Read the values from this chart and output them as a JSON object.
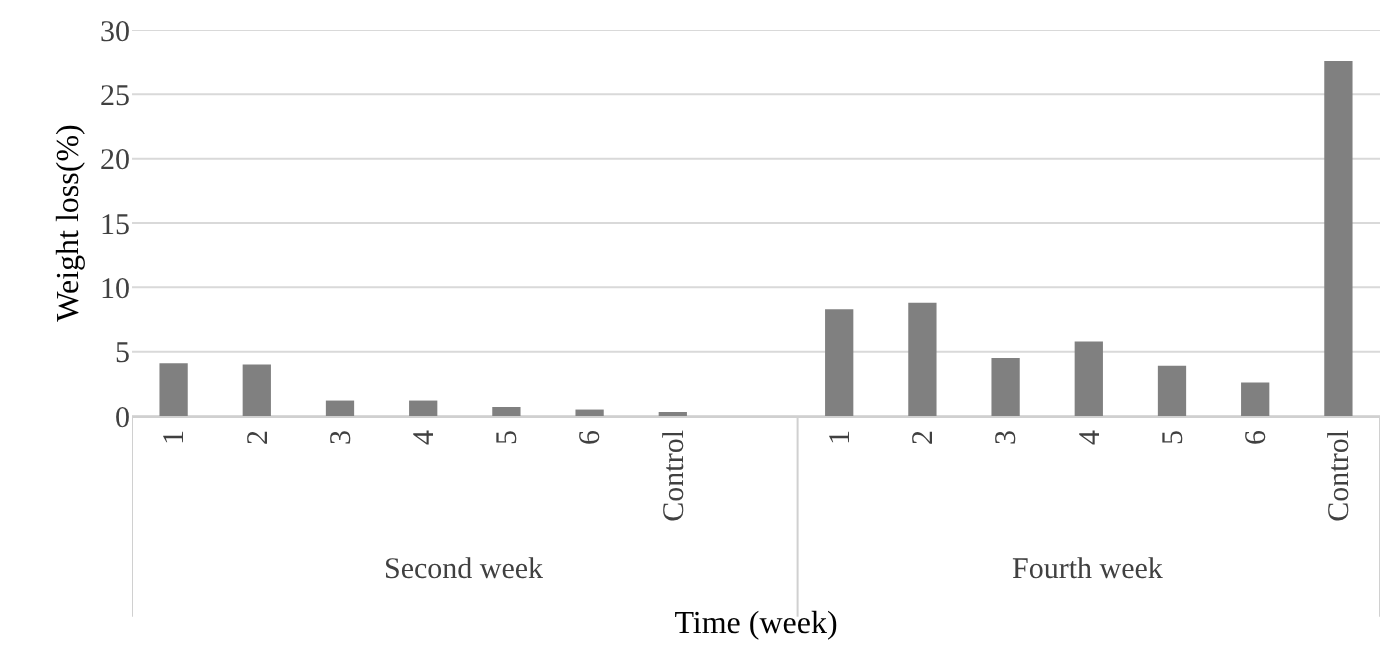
{
  "chart_data": {
    "type": "bar",
    "xlabel": "Time (week)",
    "ylabel": "Weight loss(%)",
    "categories": [
      "1",
      "2",
      "3",
      "4",
      "5",
      "6",
      "Control",
      null,
      "1",
      "2",
      "3",
      "4",
      "5",
      "6",
      "Control"
    ],
    "values": [
      4.1,
      4.0,
      1.2,
      1.2,
      0.7,
      0.5,
      0.3,
      null,
      8.3,
      8.8,
      4.5,
      5.8,
      3.9,
      2.6,
      27.6
    ],
    "color": "#808080",
    "ylim": [
      0,
      30
    ],
    "yticks": [
      0,
      5,
      10,
      15,
      20,
      25,
      30
    ],
    "grid": "y",
    "annotations": [
      "Second week",
      "Fourth week"
    ]
  }
}
